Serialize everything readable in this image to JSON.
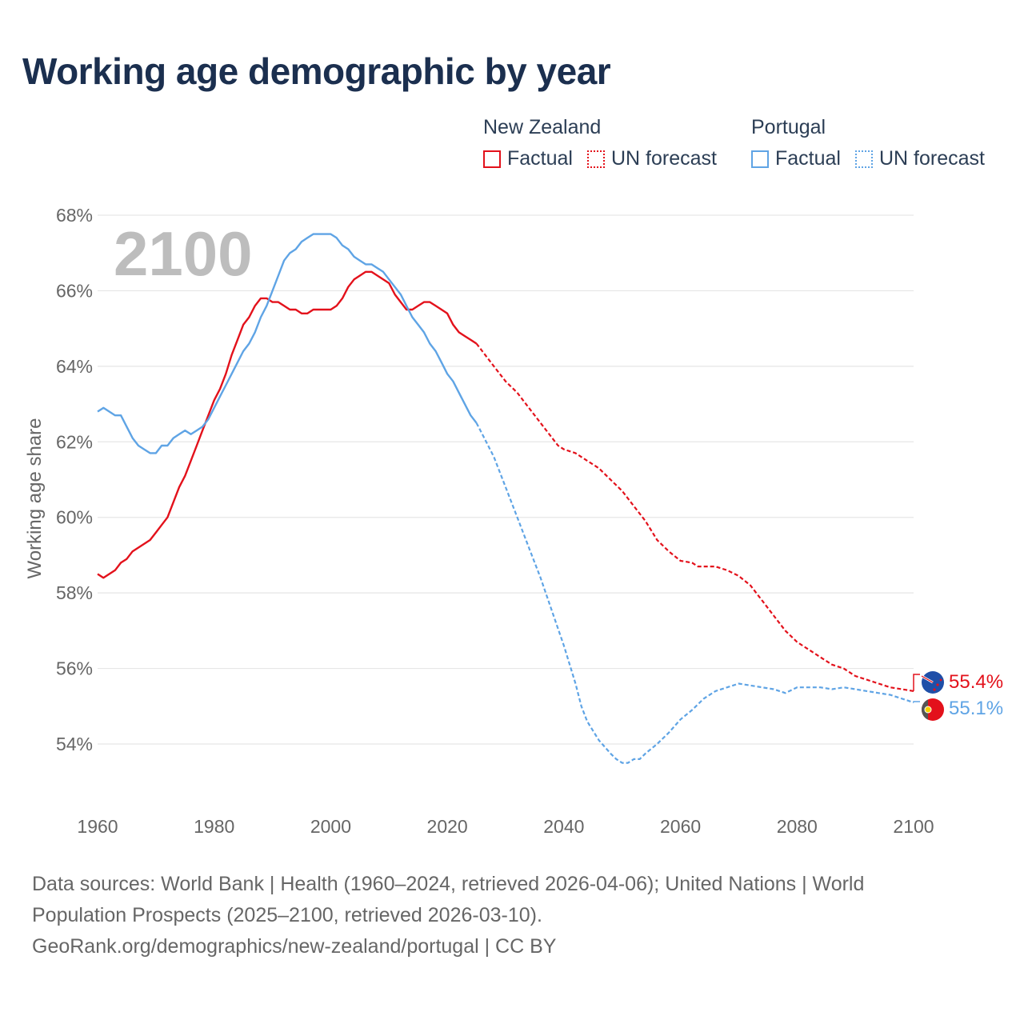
{
  "title": "Working age demographic by year",
  "colors": {
    "nz": "#e3111b",
    "pt": "#5fa4e5",
    "grid": "#e6e6e6",
    "tick": "#666666",
    "title": "#1b2f4f"
  },
  "legend": {
    "nz": {
      "name": "New Zealand",
      "factual": "Factual",
      "forecast": "UN forecast"
    },
    "pt": {
      "name": "Portugal",
      "factual": "Factual",
      "forecast": "UN forecast"
    }
  },
  "footer": {
    "line1": "Data sources: World Bank | Health (1960–2024, retrieved 2026-04-06); United Nations | World",
    "line2": "Population Prospects (2025–2100, retrieved 2026-03-10).",
    "line3": "GeoRank.org/demographics/new-zealand/portugal | CC BY"
  },
  "chart_data": {
    "type": "line",
    "title": "Working age demographic by year",
    "ylabel": "Working age share",
    "xlabel": "",
    "year_display": "2100",
    "xlim": [
      1960,
      2100
    ],
    "ylim": [
      53,
      68
    ],
    "x_ticks": [
      "1960",
      "1980",
      "2000",
      "2020",
      "2040",
      "2060",
      "2080",
      "2100"
    ],
    "y_ticks": [
      "54%",
      "56%",
      "58%",
      "60%",
      "62%",
      "64%",
      "66%",
      "68%"
    ],
    "factual_range": [
      1960,
      2024
    ],
    "forecast_range": [
      2025,
      2100
    ],
    "series": [
      {
        "name": "New Zealand",
        "key": "nz",
        "end_label": "55.4%",
        "points": [
          [
            1960,
            58.5
          ],
          [
            1961,
            58.4
          ],
          [
            1962,
            58.5
          ],
          [
            1963,
            58.6
          ],
          [
            1964,
            58.8
          ],
          [
            1965,
            58.9
          ],
          [
            1966,
            59.1
          ],
          [
            1967,
            59.2
          ],
          [
            1968,
            59.3
          ],
          [
            1969,
            59.4
          ],
          [
            1970,
            59.6
          ],
          [
            1971,
            59.8
          ],
          [
            1972,
            60.0
          ],
          [
            1973,
            60.4
          ],
          [
            1974,
            60.8
          ],
          [
            1975,
            61.1
          ],
          [
            1976,
            61.5
          ],
          [
            1977,
            61.9
          ],
          [
            1978,
            62.3
          ],
          [
            1979,
            62.7
          ],
          [
            1980,
            63.1
          ],
          [
            1981,
            63.4
          ],
          [
            1982,
            63.8
          ],
          [
            1983,
            64.3
          ],
          [
            1984,
            64.7
          ],
          [
            1985,
            65.1
          ],
          [
            1986,
            65.3
          ],
          [
            1987,
            65.6
          ],
          [
            1988,
            65.8
          ],
          [
            1989,
            65.8
          ],
          [
            1990,
            65.7
          ],
          [
            1991,
            65.7
          ],
          [
            1992,
            65.6
          ],
          [
            1993,
            65.5
          ],
          [
            1994,
            65.5
          ],
          [
            1995,
            65.4
          ],
          [
            1996,
            65.4
          ],
          [
            1997,
            65.5
          ],
          [
            1998,
            65.5
          ],
          [
            1999,
            65.5
          ],
          [
            2000,
            65.5
          ],
          [
            2001,
            65.6
          ],
          [
            2002,
            65.8
          ],
          [
            2003,
            66.1
          ],
          [
            2004,
            66.3
          ],
          [
            2005,
            66.4
          ],
          [
            2006,
            66.5
          ],
          [
            2007,
            66.5
          ],
          [
            2008,
            66.4
          ],
          [
            2009,
            66.3
          ],
          [
            2010,
            66.2
          ],
          [
            2011,
            65.9
          ],
          [
            2012,
            65.7
          ],
          [
            2013,
            65.5
          ],
          [
            2014,
            65.5
          ],
          [
            2015,
            65.6
          ],
          [
            2016,
            65.7
          ],
          [
            2017,
            65.7
          ],
          [
            2018,
            65.6
          ],
          [
            2019,
            65.5
          ],
          [
            2020,
            65.4
          ],
          [
            2021,
            65.1
          ],
          [
            2022,
            64.9
          ],
          [
            2023,
            64.8
          ],
          [
            2024,
            64.7
          ],
          [
            2025,
            64.6
          ],
          [
            2026,
            64.4
          ],
          [
            2028,
            64.0
          ],
          [
            2030,
            63.6
          ],
          [
            2032,
            63.3
          ],
          [
            2034,
            62.9
          ],
          [
            2036,
            62.5
          ],
          [
            2038,
            62.1
          ],
          [
            2039,
            61.9
          ],
          [
            2040,
            61.8
          ],
          [
            2042,
            61.7
          ],
          [
            2044,
            61.5
          ],
          [
            2046,
            61.3
          ],
          [
            2048,
            61.0
          ],
          [
            2050,
            60.7
          ],
          [
            2052,
            60.3
          ],
          [
            2054,
            59.9
          ],
          [
            2056,
            59.4
          ],
          [
            2058,
            59.1
          ],
          [
            2060,
            58.85
          ],
          [
            2062,
            58.8
          ],
          [
            2063,
            58.7
          ],
          [
            2066,
            58.7
          ],
          [
            2067,
            58.65
          ],
          [
            2068,
            58.6
          ],
          [
            2070,
            58.45
          ],
          [
            2072,
            58.2
          ],
          [
            2074,
            57.8
          ],
          [
            2076,
            57.4
          ],
          [
            2078,
            57.0
          ],
          [
            2080,
            56.7
          ],
          [
            2082,
            56.5
          ],
          [
            2084,
            56.3
          ],
          [
            2086,
            56.1
          ],
          [
            2088,
            56.0
          ],
          [
            2090,
            55.8
          ],
          [
            2092,
            55.7
          ],
          [
            2094,
            55.6
          ],
          [
            2096,
            55.5
          ],
          [
            2098,
            55.45
          ],
          [
            2100,
            55.4
          ]
        ]
      },
      {
        "name": "Portugal",
        "key": "pt",
        "end_label": "55.1%",
        "points": [
          [
            1960,
            62.8
          ],
          [
            1961,
            62.9
          ],
          [
            1962,
            62.8
          ],
          [
            1963,
            62.7
          ],
          [
            1964,
            62.7
          ],
          [
            1965,
            62.4
          ],
          [
            1966,
            62.1
          ],
          [
            1967,
            61.9
          ],
          [
            1968,
            61.8
          ],
          [
            1969,
            61.7
          ],
          [
            1970,
            61.7
          ],
          [
            1971,
            61.9
          ],
          [
            1972,
            61.9
          ],
          [
            1973,
            62.1
          ],
          [
            1974,
            62.2
          ],
          [
            1975,
            62.3
          ],
          [
            1976,
            62.2
          ],
          [
            1977,
            62.3
          ],
          [
            1978,
            62.4
          ],
          [
            1979,
            62.6
          ],
          [
            1980,
            62.9
          ],
          [
            1981,
            63.2
          ],
          [
            1982,
            63.5
          ],
          [
            1983,
            63.8
          ],
          [
            1984,
            64.1
          ],
          [
            1985,
            64.4
          ],
          [
            1986,
            64.6
          ],
          [
            1987,
            64.9
          ],
          [
            1988,
            65.3
          ],
          [
            1989,
            65.6
          ],
          [
            1990,
            66.0
          ],
          [
            1991,
            66.4
          ],
          [
            1992,
            66.8
          ],
          [
            1993,
            67.0
          ],
          [
            1994,
            67.1
          ],
          [
            1995,
            67.3
          ],
          [
            1996,
            67.4
          ],
          [
            1997,
            67.5
          ],
          [
            1998,
            67.5
          ],
          [
            1999,
            67.5
          ],
          [
            2000,
            67.5
          ],
          [
            2001,
            67.4
          ],
          [
            2002,
            67.2
          ],
          [
            2003,
            67.1
          ],
          [
            2004,
            66.9
          ],
          [
            2005,
            66.8
          ],
          [
            2006,
            66.7
          ],
          [
            2007,
            66.7
          ],
          [
            2008,
            66.6
          ],
          [
            2009,
            66.5
          ],
          [
            2010,
            66.3
          ],
          [
            2011,
            66.1
          ],
          [
            2012,
            65.9
          ],
          [
            2013,
            65.6
          ],
          [
            2014,
            65.3
          ],
          [
            2015,
            65.1
          ],
          [
            2016,
            64.9
          ],
          [
            2017,
            64.6
          ],
          [
            2018,
            64.4
          ],
          [
            2019,
            64.1
          ],
          [
            2020,
            63.8
          ],
          [
            2021,
            63.6
          ],
          [
            2022,
            63.3
          ],
          [
            2023,
            63.0
          ],
          [
            2024,
            62.7
          ],
          [
            2025,
            62.5
          ],
          [
            2026,
            62.2
          ],
          [
            2028,
            61.6
          ],
          [
            2030,
            60.8
          ],
          [
            2032,
            60.0
          ],
          [
            2034,
            59.2
          ],
          [
            2036,
            58.4
          ],
          [
            2038,
            57.5
          ],
          [
            2040,
            56.6
          ],
          [
            2042,
            55.6
          ],
          [
            2043,
            55.0
          ],
          [
            2044,
            54.6
          ],
          [
            2046,
            54.1
          ],
          [
            2048,
            53.75
          ],
          [
            2049,
            53.6
          ],
          [
            2050,
            53.5
          ],
          [
            2051,
            53.5
          ],
          [
            2052,
            53.6
          ],
          [
            2053,
            53.6
          ],
          [
            2054,
            53.75
          ],
          [
            2056,
            54.0
          ],
          [
            2058,
            54.3
          ],
          [
            2060,
            54.65
          ],
          [
            2062,
            54.9
          ],
          [
            2064,
            55.2
          ],
          [
            2066,
            55.4
          ],
          [
            2068,
            55.5
          ],
          [
            2070,
            55.6
          ],
          [
            2072,
            55.55
          ],
          [
            2074,
            55.5
          ],
          [
            2076,
            55.45
          ],
          [
            2078,
            55.35
          ],
          [
            2080,
            55.5
          ],
          [
            2082,
            55.5
          ],
          [
            2084,
            55.5
          ],
          [
            2086,
            55.45
          ],
          [
            2088,
            55.5
          ],
          [
            2090,
            55.45
          ],
          [
            2092,
            55.4
          ],
          [
            2094,
            55.35
          ],
          [
            2096,
            55.3
          ],
          [
            2098,
            55.2
          ],
          [
            2100,
            55.1
          ]
        ]
      }
    ]
  }
}
